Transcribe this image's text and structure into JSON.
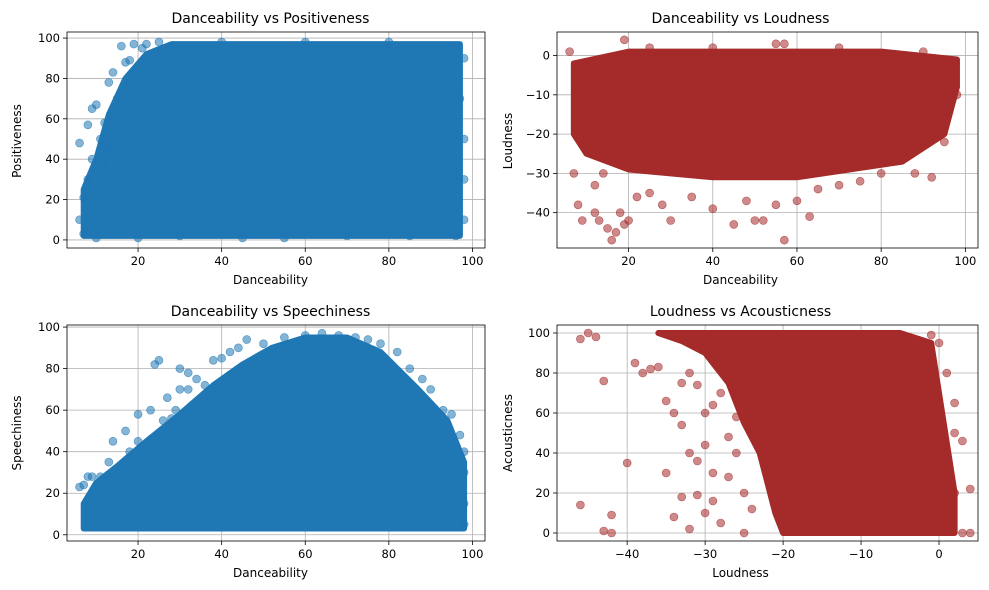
{
  "chart_data": [
    {
      "type": "scatter",
      "title": "Danceability vs Positiveness",
      "xlabel": "Danceability",
      "ylabel": "Positiveness",
      "xlim": [
        3,
        103
      ],
      "ylim": [
        -4,
        103
      ],
      "xticks": [
        20,
        40,
        60,
        80,
        100
      ],
      "yticks": [
        0,
        20,
        40,
        60,
        80,
        100
      ],
      "grid": true,
      "color": "#1f77b4",
      "shape": "dense",
      "sample_points": [
        [
          6,
          48
        ],
        [
          8,
          57
        ],
        [
          9,
          65
        ],
        [
          10,
          67
        ],
        [
          12,
          58
        ],
        [
          13,
          78
        ],
        [
          14,
          83
        ],
        [
          16,
          96
        ],
        [
          17,
          88
        ],
        [
          18,
          89
        ],
        [
          19,
          97
        ],
        [
          21,
          95
        ],
        [
          22,
          97
        ],
        [
          25,
          98
        ],
        [
          19,
          83
        ],
        [
          15,
          70
        ],
        [
          14,
          60
        ],
        [
          11,
          50
        ],
        [
          12,
          38
        ],
        [
          8,
          30
        ],
        [
          7,
          21
        ],
        [
          6,
          10
        ],
        [
          7,
          3
        ],
        [
          10,
          1
        ],
        [
          20,
          1
        ],
        [
          30,
          2
        ],
        [
          45,
          1
        ],
        [
          55,
          1
        ],
        [
          70,
          2
        ],
        [
          85,
          2
        ],
        [
          96,
          2
        ],
        [
          98,
          10
        ],
        [
          98,
          30
        ],
        [
          98,
          50
        ],
        [
          97,
          70
        ],
        [
          98,
          90
        ],
        [
          96,
          96
        ],
        [
          80,
          98
        ],
        [
          60,
          98
        ],
        [
          40,
          98
        ],
        [
          13,
          45
        ],
        [
          16,
          52
        ],
        [
          9,
          40
        ]
      ]
    },
    {
      "type": "scatter",
      "title": "Danceability vs Loudness",
      "xlabel": "Danceability",
      "ylabel": "Loudness",
      "xlim": [
        3,
        103
      ],
      "ylim": [
        -49,
        6
      ],
      "xticks": [
        20,
        40,
        60,
        80,
        100
      ],
      "yticks": [
        -40,
        -30,
        -20,
        -10,
        0
      ],
      "grid": true,
      "color": "#a52a2a",
      "shape": "dense",
      "sample_points": [
        [
          8,
          -38
        ],
        [
          9,
          -42
        ],
        [
          12,
          -40
        ],
        [
          13,
          -42
        ],
        [
          15,
          -44
        ],
        [
          16,
          -47
        ],
        [
          17,
          -45
        ],
        [
          18,
          -40
        ],
        [
          19,
          -43
        ],
        [
          20,
          -42
        ],
        [
          22,
          -36
        ],
        [
          25,
          -35
        ],
        [
          28,
          -38
        ],
        [
          30,
          -42
        ],
        [
          35,
          -36
        ],
        [
          40,
          -39
        ],
        [
          45,
          -43
        ],
        [
          48,
          -37
        ],
        [
          50,
          -42
        ],
        [
          52,
          -42
        ],
        [
          55,
          -38
        ],
        [
          57,
          -47
        ],
        [
          60,
          -37
        ],
        [
          63,
          -41
        ],
        [
          65,
          -34
        ],
        [
          70,
          -33
        ],
        [
          75,
          -32
        ],
        [
          80,
          -30
        ],
        [
          85,
          -25
        ],
        [
          88,
          -30
        ],
        [
          92,
          -31
        ],
        [
          95,
          -22
        ],
        [
          98,
          -10
        ],
        [
          19,
          4
        ],
        [
          25,
          2
        ],
        [
          40,
          2
        ],
        [
          55,
          3
        ],
        [
          57,
          3
        ],
        [
          70,
          2
        ],
        [
          90,
          1
        ],
        [
          6,
          1
        ],
        [
          10,
          -20
        ],
        [
          7,
          -30
        ],
        [
          12,
          -33
        ],
        [
          14,
          -30
        ]
      ]
    },
    {
      "type": "scatter",
      "title": "Danceability vs Speechiness",
      "xlabel": "Danceability",
      "ylabel": "Speechiness",
      "xlim": [
        3,
        103
      ],
      "ylim": [
        -3,
        101
      ],
      "xticks": [
        20,
        40,
        60,
        80,
        100
      ],
      "yticks": [
        0,
        20,
        40,
        60,
        80,
        100
      ],
      "grid": true,
      "color": "#1f77b4",
      "shape": "triangle",
      "sample_points": [
        [
          6,
          23
        ],
        [
          7,
          24
        ],
        [
          8,
          28
        ],
        [
          9,
          28
        ],
        [
          11,
          28
        ],
        [
          13,
          35
        ],
        [
          14,
          45
        ],
        [
          17,
          50
        ],
        [
          20,
          58
        ],
        [
          23,
          60
        ],
        [
          25,
          48
        ],
        [
          27,
          66
        ],
        [
          28,
          56
        ],
        [
          29,
          60
        ],
        [
          30,
          70
        ],
        [
          32,
          70
        ],
        [
          34,
          75
        ],
        [
          36,
          72
        ],
        [
          38,
          84
        ],
        [
          40,
          85
        ],
        [
          42,
          88
        ],
        [
          44,
          90
        ],
        [
          46,
          94
        ],
        [
          50,
          92
        ],
        [
          55,
          95
        ],
        [
          60,
          96
        ],
        [
          64,
          97
        ],
        [
          68,
          96
        ],
        [
          72,
          95
        ],
        [
          75,
          94
        ],
        [
          78,
          92
        ],
        [
          82,
          88
        ],
        [
          85,
          80
        ],
        [
          88,
          75
        ],
        [
          90,
          70
        ],
        [
          93,
          60
        ],
        [
          95,
          58
        ],
        [
          97,
          48
        ],
        [
          98,
          40
        ],
        [
          98,
          30
        ],
        [
          98,
          15
        ],
        [
          98,
          5
        ],
        [
          24,
          82
        ],
        [
          25,
          84
        ],
        [
          30,
          80
        ],
        [
          32,
          78
        ],
        [
          18,
          40
        ],
        [
          20,
          45
        ],
        [
          26,
          55
        ],
        [
          37,
          65
        ]
      ]
    },
    {
      "type": "scatter",
      "title": "Loudness vs Acousticness",
      "xlabel": "Loudness",
      "ylabel": "Acousticness",
      "xlim": [
        -49,
        5
      ],
      "ylim": [
        -4,
        104
      ],
      "xticks": [
        -40,
        -30,
        -20,
        -10,
        0
      ],
      "yticks": [
        0,
        20,
        40,
        60,
        80,
        100
      ],
      "grid": true,
      "color": "#a52a2a",
      "shape": "knee",
      "sample_points": [
        [
          -46,
          97
        ],
        [
          -44,
          98
        ],
        [
          -45,
          100
        ],
        [
          -43,
          76
        ],
        [
          -46,
          14
        ],
        [
          -43,
          1
        ],
        [
          -42,
          0
        ],
        [
          -42,
          9
        ],
        [
          -40,
          35
        ],
        [
          -39,
          85
        ],
        [
          -38,
          80
        ],
        [
          -37,
          82
        ],
        [
          -36,
          83
        ],
        [
          -35,
          66
        ],
        [
          -34,
          60
        ],
        [
          -33,
          54
        ],
        [
          -32,
          40
        ],
        [
          -31,
          36
        ],
        [
          -35,
          30
        ],
        [
          -34,
          8
        ],
        [
          -33,
          18
        ],
        [
          -32,
          2
        ],
        [
          -30,
          10
        ],
        [
          -29,
          16
        ],
        [
          -31,
          19
        ],
        [
          -28,
          5
        ],
        [
          -30,
          60
        ],
        [
          -27,
          48
        ],
        [
          -26,
          40
        ],
        [
          -27,
          28
        ],
        [
          -25,
          20
        ],
        [
          -25,
          0
        ],
        [
          -28,
          70
        ],
        [
          -29,
          64
        ],
        [
          -31,
          74
        ],
        [
          -32,
          80
        ],
        [
          -33,
          75
        ],
        [
          -30,
          44
        ],
        [
          -29,
          30
        ],
        [
          -26,
          58
        ],
        [
          -24,
          12
        ],
        [
          -1,
          99
        ],
        [
          0,
          95
        ],
        [
          1,
          80
        ],
        [
          2,
          65
        ],
        [
          2,
          50
        ],
        [
          3,
          46
        ],
        [
          1,
          35
        ],
        [
          2,
          20
        ],
        [
          4,
          22
        ],
        [
          4,
          0
        ],
        [
          3,
          0
        ],
        [
          1,
          5
        ],
        [
          0,
          28
        ],
        [
          1,
          40
        ]
      ]
    }
  ]
}
